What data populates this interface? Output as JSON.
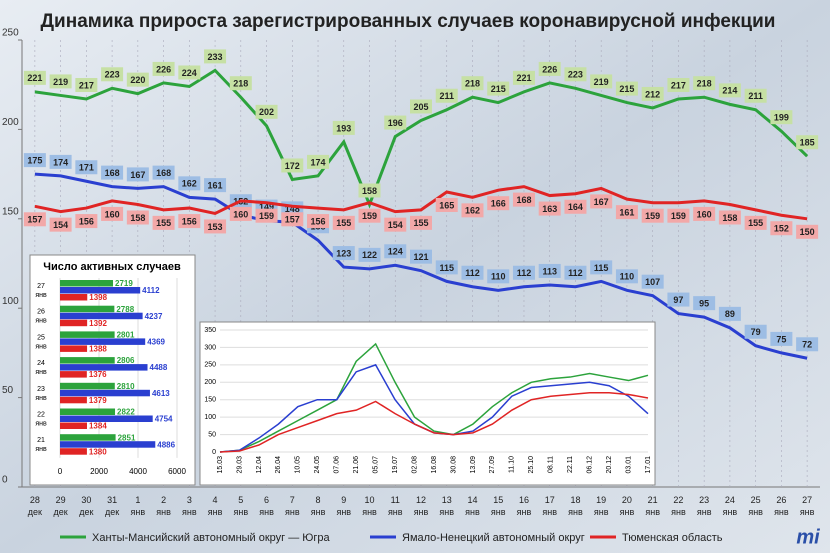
{
  "chart_data": [
    {
      "type": "line",
      "title": "Динамика прироста зарегистрированных случаев коронавирусной инфекции",
      "categories": [
        "28 дек",
        "29 дек",
        "30 дек",
        "31 дек",
        "1 янв",
        "2 янв",
        "3 янв",
        "4 янв",
        "5 янв",
        "6 янв",
        "7 янв",
        "8 янв",
        "9 янв",
        "10 янв",
        "11 янв",
        "12 янв",
        "13 янв",
        "14 янв",
        "15 янв",
        "16 янв",
        "17 янв",
        "18 янв",
        "19 янв",
        "20 янв",
        "21 янв",
        "22 янв",
        "23 янв",
        "24 янв",
        "25 янв",
        "26 янв",
        "27 янв"
      ],
      "series": [
        {
          "name": "Ханты-Мансийский автономный округ — Югра",
          "color": "#2ca33c",
          "label_color": "#c6e0a4",
          "values": [
            221,
            219,
            217,
            223,
            220,
            226,
            224,
            233,
            218,
            202,
            172,
            174,
            193,
            158,
            196,
            205,
            211,
            218,
            215,
            221,
            226,
            223,
            219,
            215,
            212,
            217,
            218,
            214,
            211,
            199,
            185
          ]
        },
        {
          "name": "Ямало-Ненецкий автономный округ",
          "color": "#2a3fd0",
          "label_color": "#9dbde4",
          "values": [
            175,
            174,
            171,
            168,
            167,
            168,
            162,
            161,
            152,
            149,
            148,
            138,
            123,
            122,
            124,
            121,
            115,
            112,
            110,
            112,
            113,
            112,
            115,
            110,
            107,
            97,
            95,
            89,
            79,
            75,
            72
          ]
        },
        {
          "name": "Тюменская область",
          "color": "#e02424",
          "label_color": "#f2a8a8",
          "values": [
            157,
            154,
            156,
            160,
            158,
            155,
            156,
            153,
            160,
            159,
            157,
            156,
            155,
            159,
            154,
            155,
            165,
            162,
            166,
            168,
            163,
            164,
            167,
            161,
            159,
            159,
            160,
            158,
            155,
            152,
            150
          ]
        }
      ],
      "ylim": [
        0,
        250
      ],
      "yticks": [
        0,
        50,
        100,
        150,
        200,
        250
      ],
      "logo": "mi"
    },
    {
      "type": "hbar",
      "title": "Число активных случаев",
      "categories": [
        "27 янв",
        "26 янв",
        "25 янв",
        "24 янв",
        "23 янв",
        "22 янв",
        "21 янв"
      ],
      "series": [
        {
          "color": "#2ca33c",
          "values": [
            2719,
            2788,
            2801,
            2806,
            2810,
            2822,
            2851
          ]
        },
        {
          "color": "#2a3fd0",
          "values": [
            4112,
            4237,
            4369,
            4488,
            4613,
            4754,
            4886
          ]
        },
        {
          "color": "#e02424",
          "values": [
            1398,
            1392,
            1388,
            1376,
            1379,
            1384,
            1380
          ]
        }
      ],
      "xlim": [
        0,
        6000
      ],
      "xticks": [
        0,
        2000,
        4000,
        6000
      ]
    },
    {
      "type": "line",
      "categories": [
        "15.03",
        "29.03",
        "12.04",
        "26.04",
        "10.05",
        "24.05",
        "07.06",
        "21.06",
        "05.07",
        "19.07",
        "02.08",
        "16.08",
        "30.08",
        "13.09",
        "27.09",
        "11.10",
        "25.10",
        "08.11",
        "22.11",
        "06.12",
        "20.12",
        "03.01",
        "17.01"
      ],
      "series": [
        {
          "color": "#2ca33c",
          "values": [
            0,
            5,
            30,
            60,
            90,
            120,
            150,
            260,
            310,
            200,
            100,
            60,
            50,
            80,
            130,
            170,
            200,
            210,
            215,
            225,
            215,
            205,
            220
          ]
        },
        {
          "color": "#2a3fd0",
          "values": [
            0,
            5,
            40,
            80,
            130,
            150,
            150,
            230,
            250,
            150,
            80,
            55,
            50,
            60,
            100,
            160,
            185,
            190,
            195,
            200,
            190,
            160,
            110
          ]
        },
        {
          "color": "#e02424",
          "values": [
            0,
            3,
            20,
            50,
            70,
            90,
            110,
            120,
            145,
            110,
            80,
            55,
            50,
            55,
            80,
            120,
            150,
            160,
            165,
            170,
            170,
            165,
            155
          ]
        }
      ],
      "ylim": [
        0,
        350
      ],
      "yticks": [
        0,
        50,
        100,
        150,
        200,
        250,
        300,
        350
      ]
    }
  ]
}
